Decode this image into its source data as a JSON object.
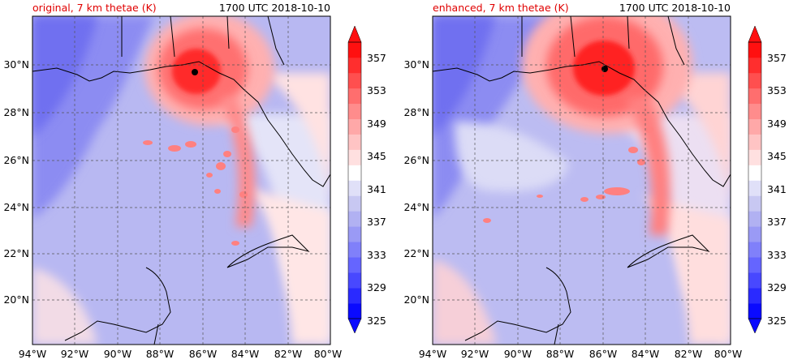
{
  "panels": [
    {
      "title": "original, 7 km thetae (K)",
      "time": "1700 UTC 2018-10-10",
      "center_lon": -86.4,
      "center_lat": 29.7
    },
    {
      "title": "enhanced, 7 km thetae (K)",
      "time": "1700 UTC 2018-10-10",
      "center_lon": -85.8,
      "center_lat": 29.8
    }
  ],
  "lon_labels": [
    "94°W",
    "92°W",
    "90°W",
    "88°W",
    "86°W",
    "84°W",
    "82°W",
    "80°W"
  ],
  "lat_labels": [
    "30°N",
    "28°N",
    "26°N",
    "24°N",
    "22°N",
    "20°N"
  ],
  "colorbar": {
    "ticks": [
      "357",
      "353",
      "349",
      "345",
      "341",
      "337",
      "333",
      "329",
      "325"
    ],
    "levels": [
      325,
      327,
      329,
      331,
      333,
      335,
      337,
      339,
      341,
      343,
      345,
      347,
      349,
      351,
      353,
      355,
      357,
      359
    ],
    "colors": [
      "#0a0aff",
      "#2a2aff",
      "#4848ff",
      "#6565ff",
      "#8080fa",
      "#9a9af5",
      "#b1b1f2",
      "#c8c8f2",
      "#e0e0f8",
      "#ffffff",
      "#ffe0e0",
      "#ffc4c4",
      "#ffa8a8",
      "#ff8c8c",
      "#ff6e6e",
      "#ff4f4f",
      "#ff2e2e",
      "#ff1010"
    ],
    "extend": "both"
  }
}
